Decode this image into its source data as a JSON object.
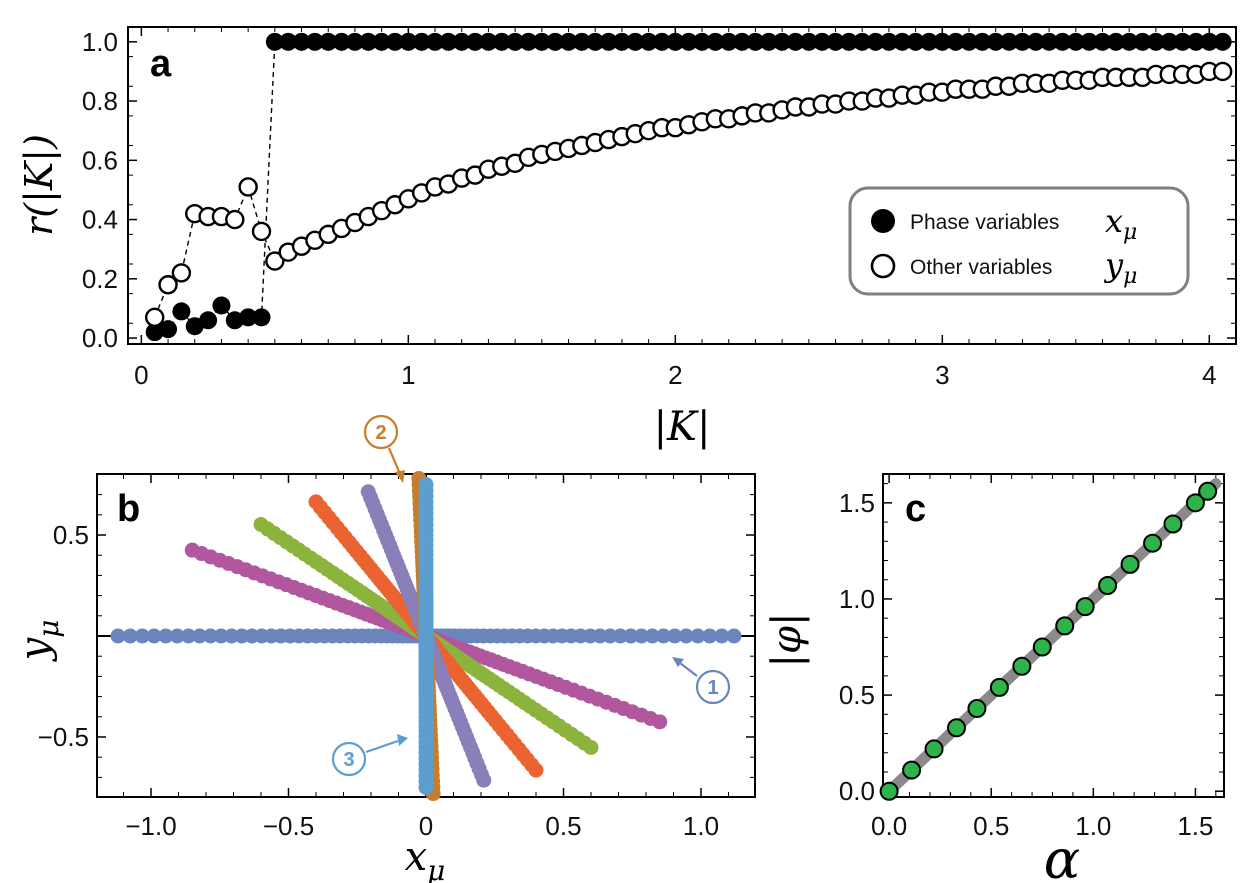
{
  "chart_data": [
    {
      "panel": "a",
      "type": "scatter",
      "xlabel": "|K|",
      "ylabel": "r(|K|)",
      "xlim": [
        -0.05,
        4.1
      ],
      "ylim": [
        -0.02,
        1.05
      ],
      "xticks": [
        "0",
        "1",
        "2",
        "3",
        "4"
      ],
      "yticks": [
        "0.0",
        "0.2",
        "0.4",
        "0.6",
        "0.8",
        "1.0"
      ],
      "grid": false,
      "legend_position": "center-right",
      "series": [
        {
          "name": "Phase variables x_μ",
          "legend_text": "Phase variables",
          "legend_math": "x_μ",
          "marker": "filled-circle",
          "color": "#000000",
          "x": [
            0.05,
            0.1,
            0.15,
            0.2,
            0.25,
            0.3,
            0.35,
            0.4,
            0.45,
            0.5,
            0.55,
            0.6,
            0.65,
            0.7,
            0.75,
            0.8,
            0.85,
            0.9,
            0.95,
            1.0,
            1.05,
            1.1,
            1.15,
            1.2,
            1.25,
            1.3,
            1.35,
            1.4,
            1.45,
            1.5,
            1.55,
            1.6,
            1.65,
            1.7,
            1.75,
            1.8,
            1.85,
            1.9,
            1.95,
            2.0,
            2.05,
            2.1,
            2.15,
            2.2,
            2.25,
            2.3,
            2.35,
            2.4,
            2.45,
            2.5,
            2.55,
            2.6,
            2.65,
            2.7,
            2.75,
            2.8,
            2.85,
            2.9,
            2.95,
            3.0,
            3.05,
            3.1,
            3.15,
            3.2,
            3.25,
            3.3,
            3.35,
            3.4,
            3.45,
            3.5,
            3.55,
            3.6,
            3.65,
            3.7,
            3.75,
            3.8,
            3.85,
            3.9,
            3.95,
            4.0,
            4.05
          ],
          "y": [
            0.02,
            0.03,
            0.09,
            0.04,
            0.06,
            0.11,
            0.06,
            0.07,
            0.07,
            1.0,
            1.0,
            1.0,
            1.0,
            1.0,
            1.0,
            1.0,
            1.0,
            1.0,
            1.0,
            1.0,
            1.0,
            1.0,
            1.0,
            1.0,
            1.0,
            1.0,
            1.0,
            1.0,
            1.0,
            1.0,
            1.0,
            1.0,
            1.0,
            1.0,
            1.0,
            1.0,
            1.0,
            1.0,
            1.0,
            1.0,
            1.0,
            1.0,
            1.0,
            1.0,
            1.0,
            1.0,
            1.0,
            1.0,
            1.0,
            1.0,
            1.0,
            1.0,
            1.0,
            1.0,
            1.0,
            1.0,
            1.0,
            1.0,
            1.0,
            1.0,
            1.0,
            1.0,
            1.0,
            1.0,
            1.0,
            1.0,
            1.0,
            1.0,
            1.0,
            1.0,
            1.0,
            1.0,
            1.0,
            1.0,
            1.0,
            1.0,
            1.0,
            1.0,
            1.0,
            1.0,
            1.0
          ]
        },
        {
          "name": "Other variables y_μ",
          "legend_text": "Other variables",
          "legend_math": "y_μ",
          "marker": "open-circle",
          "color": "#000000",
          "x": [
            0.05,
            0.1,
            0.15,
            0.2,
            0.25,
            0.3,
            0.35,
            0.4,
            0.45,
            0.5,
            0.55,
            0.6,
            0.65,
            0.7,
            0.75,
            0.8,
            0.85,
            0.9,
            0.95,
            1.0,
            1.05,
            1.1,
            1.15,
            1.2,
            1.25,
            1.3,
            1.35,
            1.4,
            1.45,
            1.5,
            1.55,
            1.6,
            1.65,
            1.7,
            1.75,
            1.8,
            1.85,
            1.9,
            1.95,
            2.0,
            2.05,
            2.1,
            2.15,
            2.2,
            2.25,
            2.3,
            2.35,
            2.4,
            2.45,
            2.5,
            2.55,
            2.6,
            2.65,
            2.7,
            2.75,
            2.8,
            2.85,
            2.9,
            2.95,
            3.0,
            3.05,
            3.1,
            3.15,
            3.2,
            3.25,
            3.3,
            3.35,
            3.4,
            3.45,
            3.5,
            3.55,
            3.6,
            3.65,
            3.7,
            3.75,
            3.8,
            3.85,
            3.9,
            3.95,
            4.0,
            4.05
          ],
          "y": [
            0.07,
            0.18,
            0.22,
            0.42,
            0.41,
            0.41,
            0.4,
            0.51,
            0.36,
            0.26,
            0.29,
            0.31,
            0.33,
            0.35,
            0.37,
            0.39,
            0.41,
            0.43,
            0.45,
            0.47,
            0.49,
            0.51,
            0.52,
            0.54,
            0.55,
            0.57,
            0.58,
            0.59,
            0.61,
            0.62,
            0.63,
            0.64,
            0.65,
            0.66,
            0.67,
            0.68,
            0.69,
            0.7,
            0.71,
            0.71,
            0.72,
            0.73,
            0.74,
            0.74,
            0.75,
            0.76,
            0.76,
            0.77,
            0.78,
            0.78,
            0.79,
            0.79,
            0.8,
            0.8,
            0.81,
            0.81,
            0.82,
            0.82,
            0.83,
            0.83,
            0.84,
            0.84,
            0.84,
            0.85,
            0.85,
            0.86,
            0.86,
            0.86,
            0.87,
            0.87,
            0.87,
            0.88,
            0.88,
            0.88,
            0.88,
            0.89,
            0.89,
            0.89,
            0.89,
            0.9,
            0.9
          ]
        }
      ]
    },
    {
      "panel": "b",
      "type": "scatter",
      "xlabel": "x_μ",
      "ylabel": "y_μ",
      "xlim": [
        -1.2,
        1.2
      ],
      "ylim": [
        -0.8,
        0.8
      ],
      "xticks": [
        "−1.0",
        "−0.5",
        "0",
        "0.5",
        "1.0"
      ],
      "yticks": [
        "0.5",
        "−0.5"
      ],
      "grid": false,
      "callouts": [
        "①",
        "②",
        "③"
      ],
      "series": [
        {
          "color": "#6b86bd",
          "slope": 0.0,
          "extent": 1.12
        },
        {
          "color": "#b0579d",
          "slope": -0.5,
          "extent": 0.85
        },
        {
          "color": "#8cb43c",
          "slope": -0.92,
          "extent": 0.6
        },
        {
          "color": "#ea6330",
          "slope": -1.66,
          "extent": 0.4
        },
        {
          "color": "#8b7fb9",
          "slope": -3.4,
          "extent": 0.21
        },
        {
          "color": "#c87d2a",
          "slope": -30.0,
          "extent": 0.026
        },
        {
          "color": "#5b9ecf",
          "slope": 9999,
          "extent": 0.75
        }
      ]
    },
    {
      "panel": "c",
      "type": "scatter",
      "xlabel": "α",
      "ylabel": "|φ|",
      "xlim": [
        -0.03,
        1.64
      ],
      "ylim": [
        -0.03,
        1.65
      ],
      "xticks": [
        "0.0",
        "0.5",
        "1.0",
        "1.5"
      ],
      "yticks": [
        "0.0",
        "0.5",
        "1.0",
        "1.5"
      ],
      "grid": false,
      "series": [
        {
          "name": "",
          "marker": "green-circle",
          "color": "#2db34a",
          "x": [
            0.0,
            0.11,
            0.22,
            0.33,
            0.43,
            0.54,
            0.65,
            0.75,
            0.86,
            0.96,
            1.07,
            1.18,
            1.29,
            1.39,
            1.5,
            1.56
          ],
          "y": [
            0.0,
            0.11,
            0.22,
            0.33,
            0.43,
            0.54,
            0.65,
            0.75,
            0.86,
            0.96,
            1.07,
            1.18,
            1.29,
            1.39,
            1.5,
            1.56
          ]
        }
      ],
      "reference_line": {
        "color": "#8a8a8a",
        "from": [
          0,
          0
        ],
        "to": [
          1.6,
          1.6
        ]
      }
    }
  ]
}
